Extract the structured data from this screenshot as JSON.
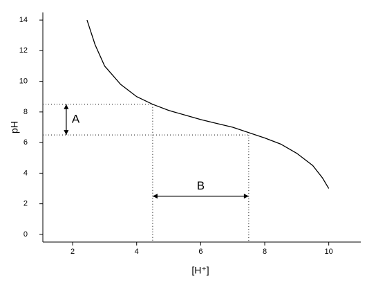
{
  "chart_data": {
    "type": "line",
    "x_label": "[H⁺]",
    "y_label": "pH",
    "x": [
      2.45,
      2.7,
      3.0,
      3.5,
      4.0,
      4.5,
      5.0,
      5.5,
      6.0,
      6.5,
      7.0,
      7.5,
      8.0,
      8.5,
      9.0,
      9.5,
      9.8,
      10.0
    ],
    "values": [
      14.0,
      12.4,
      11.0,
      9.8,
      9.0,
      8.5,
      8.1,
      7.8,
      7.5,
      7.25,
      7.0,
      6.65,
      6.3,
      5.9,
      5.3,
      4.5,
      3.7,
      3.0
    ],
    "color": "#000000",
    "xlim": [
      1.07,
      11
    ],
    "ylim": [
      -0.5,
      14.5
    ],
    "xticks": [
      2,
      4,
      6,
      8,
      10
    ],
    "yticks": [
      0,
      2,
      4,
      6,
      8,
      10,
      12,
      14
    ],
    "guides": [
      {
        "x": 4.5,
        "y": 8.5
      },
      {
        "x": 7.5,
        "y": 6.5
      }
    ],
    "annotations": [
      {
        "text": "A",
        "x": 1.8
      },
      {
        "text": "B",
        "y": 2.5
      }
    ]
  }
}
